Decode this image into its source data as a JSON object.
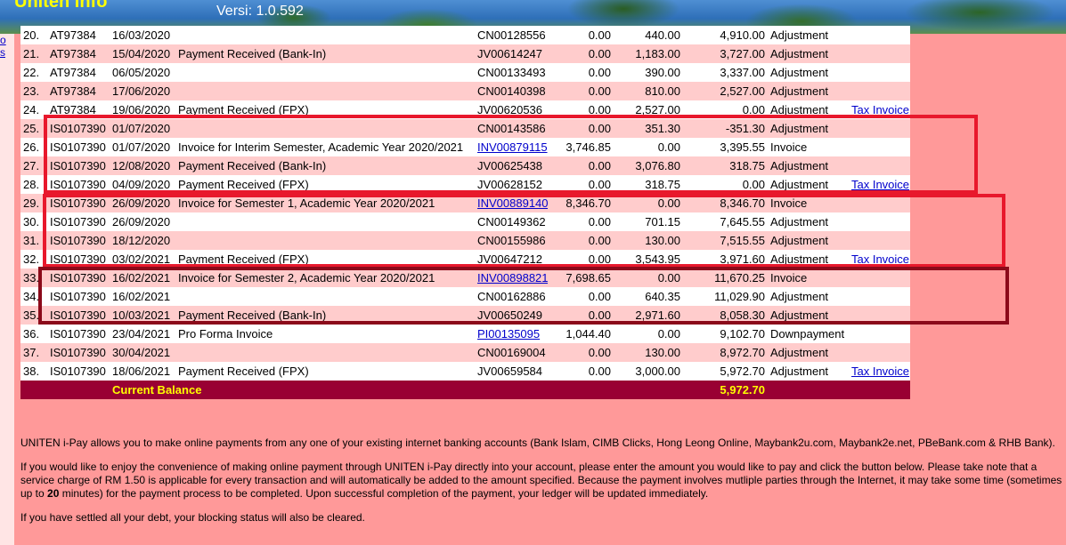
{
  "header": {
    "app_title": "Uniten Info",
    "version": "Versi: 1.0.592"
  },
  "sidebar": {
    "links": [
      "o",
      "s"
    ]
  },
  "ledger": {
    "rows": [
      {
        "no": "20.",
        "id": "AT97384",
        "date": "16/03/2020",
        "desc": "",
        "doc": "CN00128556",
        "doc_link": false,
        "debit": "0.00",
        "credit": "440.00",
        "balance": "4,910.00",
        "type": "Adjustment",
        "action": ""
      },
      {
        "no": "21.",
        "id": "AT97384",
        "date": "15/04/2020",
        "desc": "Payment Received (Bank-In)",
        "doc": "JV00614247",
        "doc_link": false,
        "debit": "0.00",
        "credit": "1,183.00",
        "balance": "3,727.00",
        "type": "Adjustment",
        "action": ""
      },
      {
        "no": "22.",
        "id": "AT97384",
        "date": "06/05/2020",
        "desc": "",
        "doc": "CN00133493",
        "doc_link": false,
        "debit": "0.00",
        "credit": "390.00",
        "balance": "3,337.00",
        "type": "Adjustment",
        "action": ""
      },
      {
        "no": "23.",
        "id": "AT97384",
        "date": "17/06/2020",
        "desc": "",
        "doc": "CN00140398",
        "doc_link": false,
        "debit": "0.00",
        "credit": "810.00",
        "balance": "2,527.00",
        "type": "Adjustment",
        "action": ""
      },
      {
        "no": "24.",
        "id": "AT97384",
        "date": "19/06/2020",
        "desc": "Payment Received (FPX)",
        "doc": "JV00620536",
        "doc_link": false,
        "debit": "0.00",
        "credit": "2,527.00",
        "balance": "0.00",
        "type": "Adjustment",
        "action": "Tax Invoice"
      },
      {
        "no": "25.",
        "id": "IS0107390",
        "date": "01/07/2020",
        "desc": "",
        "doc": "CN00143586",
        "doc_link": false,
        "debit": "0.00",
        "credit": "351.30",
        "balance": "-351.30",
        "type": "Adjustment",
        "action": ""
      },
      {
        "no": "26.",
        "id": "IS0107390",
        "date": "01/07/2020",
        "desc": "Invoice for Interim Semester, Academic Year 2020/2021",
        "doc": "INV00879115",
        "doc_link": true,
        "debit": "3,746.85",
        "credit": "0.00",
        "balance": "3,395.55",
        "type": "Invoice",
        "action": ""
      },
      {
        "no": "27.",
        "id": "IS0107390",
        "date": "12/08/2020",
        "desc": "Payment Received (Bank-In)",
        "doc": "JV00625438",
        "doc_link": false,
        "debit": "0.00",
        "credit": "3,076.80",
        "balance": "318.75",
        "type": "Adjustment",
        "action": ""
      },
      {
        "no": "28.",
        "id": "IS0107390",
        "date": "04/09/2020",
        "desc": "Payment Received (FPX)",
        "doc": "JV00628152",
        "doc_link": false,
        "debit": "0.00",
        "credit": "318.75",
        "balance": "0.00",
        "type": "Adjustment",
        "action": "Tax Invoice"
      },
      {
        "no": "29.",
        "id": "IS0107390",
        "date": "26/09/2020",
        "desc": "Invoice for Semester 1, Academic Year 2020/2021",
        "doc": "INV00889140",
        "doc_link": true,
        "debit": "8,346.70",
        "credit": "0.00",
        "balance": "8,346.70",
        "type": "Invoice",
        "action": ""
      },
      {
        "no": "30.",
        "id": "IS0107390",
        "date": "26/09/2020",
        "desc": "",
        "doc": "CN00149362",
        "doc_link": false,
        "debit": "0.00",
        "credit": "701.15",
        "balance": "7,645.55",
        "type": "Adjustment",
        "action": ""
      },
      {
        "no": "31.",
        "id": "IS0107390",
        "date": "18/12/2020",
        "desc": "",
        "doc": "CN00155986",
        "doc_link": false,
        "debit": "0.00",
        "credit": "130.00",
        "balance": "7,515.55",
        "type": "Adjustment",
        "action": ""
      },
      {
        "no": "32.",
        "id": "IS0107390",
        "date": "03/02/2021",
        "desc": "Payment Received (FPX)",
        "doc": "JV00647212",
        "doc_link": false,
        "debit": "0.00",
        "credit": "3,543.95",
        "balance": "3,971.60",
        "type": "Adjustment",
        "action": "Tax Invoice"
      },
      {
        "no": "33.",
        "id": "IS0107390",
        "date": "16/02/2021",
        "desc": "Invoice for Semester 2, Academic Year 2020/2021",
        "doc": "INV00898821",
        "doc_link": true,
        "debit": "7,698.65",
        "credit": "0.00",
        "balance": "11,670.25",
        "type": "Invoice",
        "action": ""
      },
      {
        "no": "34.",
        "id": "IS0107390",
        "date": "16/02/2021",
        "desc": "",
        "doc": "CN00162886",
        "doc_link": false,
        "debit": "0.00",
        "credit": "640.35",
        "balance": "11,029.90",
        "type": "Adjustment",
        "action": ""
      },
      {
        "no": "35.",
        "id": "IS0107390",
        "date": "10/03/2021",
        "desc": "Payment Received (Bank-In)",
        "doc": "JV00650249",
        "doc_link": false,
        "debit": "0.00",
        "credit": "2,971.60",
        "balance": "8,058.30",
        "type": "Adjustment",
        "action": ""
      },
      {
        "no": "36.",
        "id": "IS0107390",
        "date": "23/04/2021",
        "desc": "Pro Forma Invoice",
        "doc": "PI00135095",
        "doc_link": true,
        "debit": "1,044.40",
        "credit": "0.00",
        "balance": "9,102.70",
        "type": "Downpayment",
        "action": ""
      },
      {
        "no": "37.",
        "id": "IS0107390",
        "date": "30/04/2021",
        "desc": "",
        "doc": "CN00169004",
        "doc_link": false,
        "debit": "0.00",
        "credit": "130.00",
        "balance": "8,972.70",
        "type": "Adjustment",
        "action": ""
      },
      {
        "no": "38.",
        "id": "IS0107390",
        "date": "18/06/2021",
        "desc": "Payment Received (FPX)",
        "doc": "JV00659584",
        "doc_link": false,
        "debit": "0.00",
        "credit": "3,000.00",
        "balance": "5,972.70",
        "type": "Adjustment",
        "action": "Tax Invoice"
      }
    ],
    "balance_label": "Current Balance",
    "balance_value": "5,972.70"
  },
  "info": {
    "para1": "UNITEN i-Pay allows you to make online payments from any one of your existing internet banking accounts (Bank Islam, CIMB Clicks, Hong Leong Online, Maybank2u.com, Maybank2e.net, PBeBank.com & RHB Bank).",
    "para2_before": "If you would like to enjoy the convenience of making online payment through UNITEN i-Pay directly into your account, please enter the amount you would like to pay and click the button below. Please take note that a service charge of RM 1.50 is applicable for every transaction and will automatically be added to the amount specified. Because the payment involves mutliple parties through the Internet, it may take some time (sometimes up to ",
    "para2_bold": "20",
    "para2_after": " minutes) for the payment process to be completed. Upon successful completion of the payment, your ledger will be updated immediately.",
    "para3": "If you have settled all your debt, your blocking status will also be cleared."
  },
  "colors": {
    "page_bg": "#ff9999",
    "row_odd": "#ffcccc",
    "balance_bar": "#990033",
    "highlight_red": "#e8182c",
    "highlight_dark": "#8b0a1a"
  }
}
